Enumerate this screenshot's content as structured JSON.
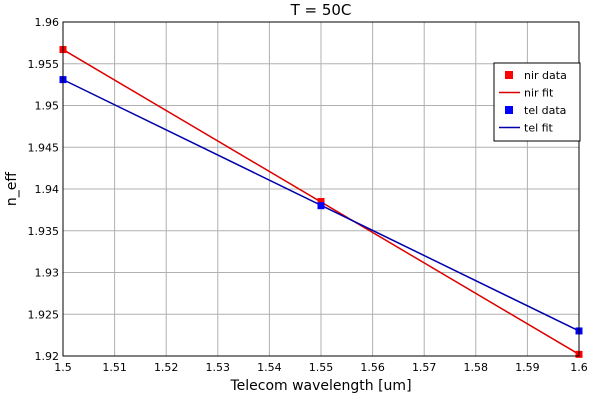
{
  "chart_data": {
    "type": "line",
    "title": "T = 50C",
    "xlabel": "Telecom wavelength [um]",
    "ylabel": "n_eff",
    "xlim": [
      1.5,
      1.6
    ],
    "ylim": [
      1.92,
      1.96
    ],
    "grid": true,
    "legend_position": "top-right",
    "x_ticks": [
      1.5,
      1.51,
      1.52,
      1.53,
      1.54,
      1.55,
      1.56,
      1.57,
      1.58,
      1.59,
      1.6
    ],
    "x_tick_labels": [
      "1.5",
      "1.51",
      "1.52",
      "1.53",
      "1.54",
      "1.55",
      "1.56",
      "1.57",
      "1.58",
      "1.59",
      "1.6"
    ],
    "y_ticks": [
      1.92,
      1.925,
      1.93,
      1.935,
      1.94,
      1.945,
      1.95,
      1.955,
      1.96
    ],
    "y_tick_labels": [
      "1.92",
      "1.925",
      "1.93",
      "1.935",
      "1.94",
      "1.945",
      "1.95",
      "1.955",
      "1.96"
    ],
    "series": [
      {
        "name": "nir data",
        "kind": "scatter",
        "color": "#ff0000",
        "x": [
          1.5,
          1.55,
          1.6
        ],
        "y": [
          1.9567,
          1.9385,
          1.9202
        ]
      },
      {
        "name": "nir fit",
        "kind": "line",
        "color": "#dd0000",
        "x": [
          1.5,
          1.6
        ],
        "y": [
          1.9567,
          1.9202
        ]
      },
      {
        "name": "tel data",
        "kind": "scatter",
        "color": "#0000ff",
        "x": [
          1.5,
          1.55,
          1.6
        ],
        "y": [
          1.9531,
          1.938,
          1.923
        ]
      },
      {
        "name": "tel fit",
        "kind": "line",
        "color": "#0000aa",
        "x": [
          1.5,
          1.6
        ],
        "y": [
          1.9531,
          1.923
        ]
      }
    ]
  }
}
